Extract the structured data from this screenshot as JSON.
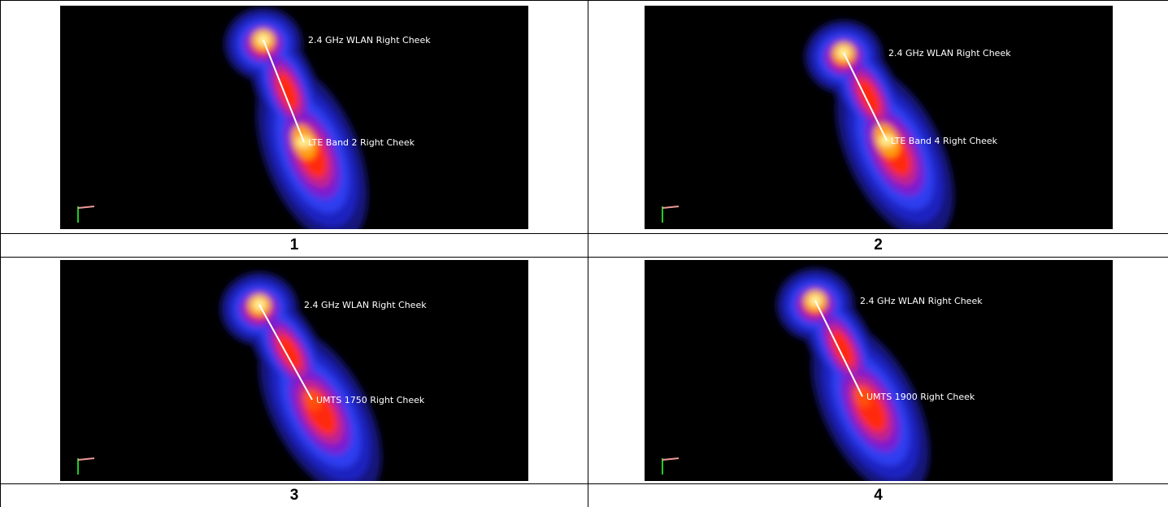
{
  "panels": [
    {
      "top_label": "2.4 GHz WLAN Right Cheek",
      "bottom_label": "LTE Band 2 Right Cheek",
      "caption": "1"
    },
    {
      "top_label": "2.4 GHz WLAN Right Cheek",
      "bottom_label": "LTE Band 4 Right Cheek",
      "caption": "2"
    },
    {
      "top_label": "2.4 GHz WLAN Right Cheek",
      "bottom_label": "UMTS 1750 Right Cheek",
      "caption": "3"
    },
    {
      "top_label": "2.4 GHz WLAN Right Cheek",
      "bottom_label": "UMTS 1900 Right Cheek",
      "caption": "4"
    }
  ]
}
